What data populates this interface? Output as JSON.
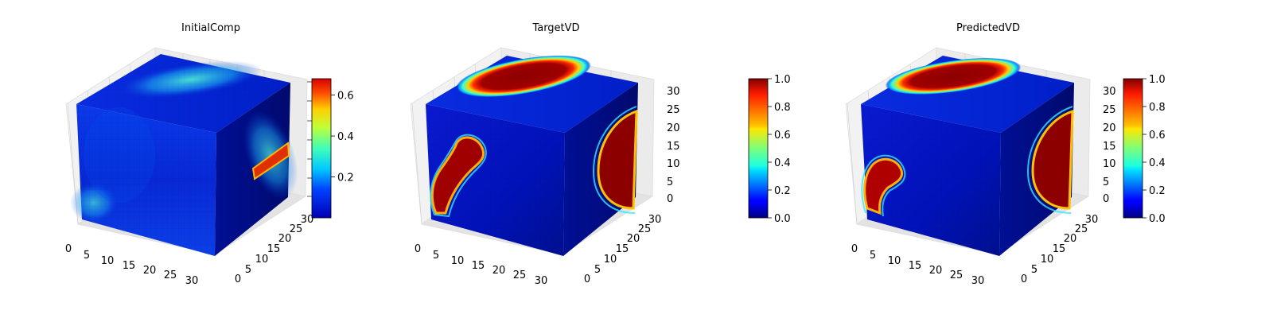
{
  "chart_data": [
    {
      "type": "heatmap",
      "subtype": "3d-voxel-cube",
      "title": "InitialComp",
      "x_ticks": [
        "0",
        "5",
        "10",
        "15",
        "20",
        "25",
        "30"
      ],
      "y_ticks": [
        "0",
        "5",
        "10",
        "15",
        "20",
        "25",
        "30"
      ],
      "z_ticks": [],
      "colormap": "jet",
      "colorbar": {
        "min": 0.0,
        "max": 0.68,
        "ticks": [
          "0.2",
          "0.4",
          "0.6"
        ],
        "tick_values": [
          0.2,
          0.4,
          0.6
        ]
      },
      "grid": true
    },
    {
      "type": "heatmap",
      "subtype": "3d-voxel-cube",
      "title": "TargetVD",
      "x_ticks": [
        "0",
        "5",
        "10",
        "15",
        "20",
        "25",
        "30"
      ],
      "y_ticks": [
        "0",
        "5",
        "10",
        "15",
        "20",
        "25",
        "30"
      ],
      "z_ticks": [
        "0",
        "5",
        "10",
        "15",
        "20",
        "25",
        "30"
      ],
      "colormap": "jet",
      "colorbar": {
        "min": 0.0,
        "max": 1.0,
        "ticks": [
          "0.0",
          "0.2",
          "0.4",
          "0.6",
          "0.8",
          "1.0"
        ],
        "tick_values": [
          0.0,
          0.2,
          0.4,
          0.6,
          0.8,
          1.0
        ]
      },
      "grid": true
    },
    {
      "type": "heatmap",
      "subtype": "3d-voxel-cube",
      "title": "PredictedVD",
      "x_ticks": [
        "0",
        "5",
        "10",
        "15",
        "20",
        "25",
        "30"
      ],
      "y_ticks": [
        "0",
        "5",
        "10",
        "15",
        "20",
        "25",
        "30"
      ],
      "z_ticks": [
        "0",
        "5",
        "10",
        "15",
        "20",
        "25",
        "30"
      ],
      "colormap": "jet",
      "colorbar": {
        "min": 0.0,
        "max": 1.0,
        "ticks": [
          "0.0",
          "0.2",
          "0.4",
          "0.6",
          "0.8",
          "1.0"
        ],
        "tick_values": [
          0.0,
          0.2,
          0.4,
          0.6,
          0.8,
          1.0
        ]
      },
      "grid": true
    }
  ]
}
